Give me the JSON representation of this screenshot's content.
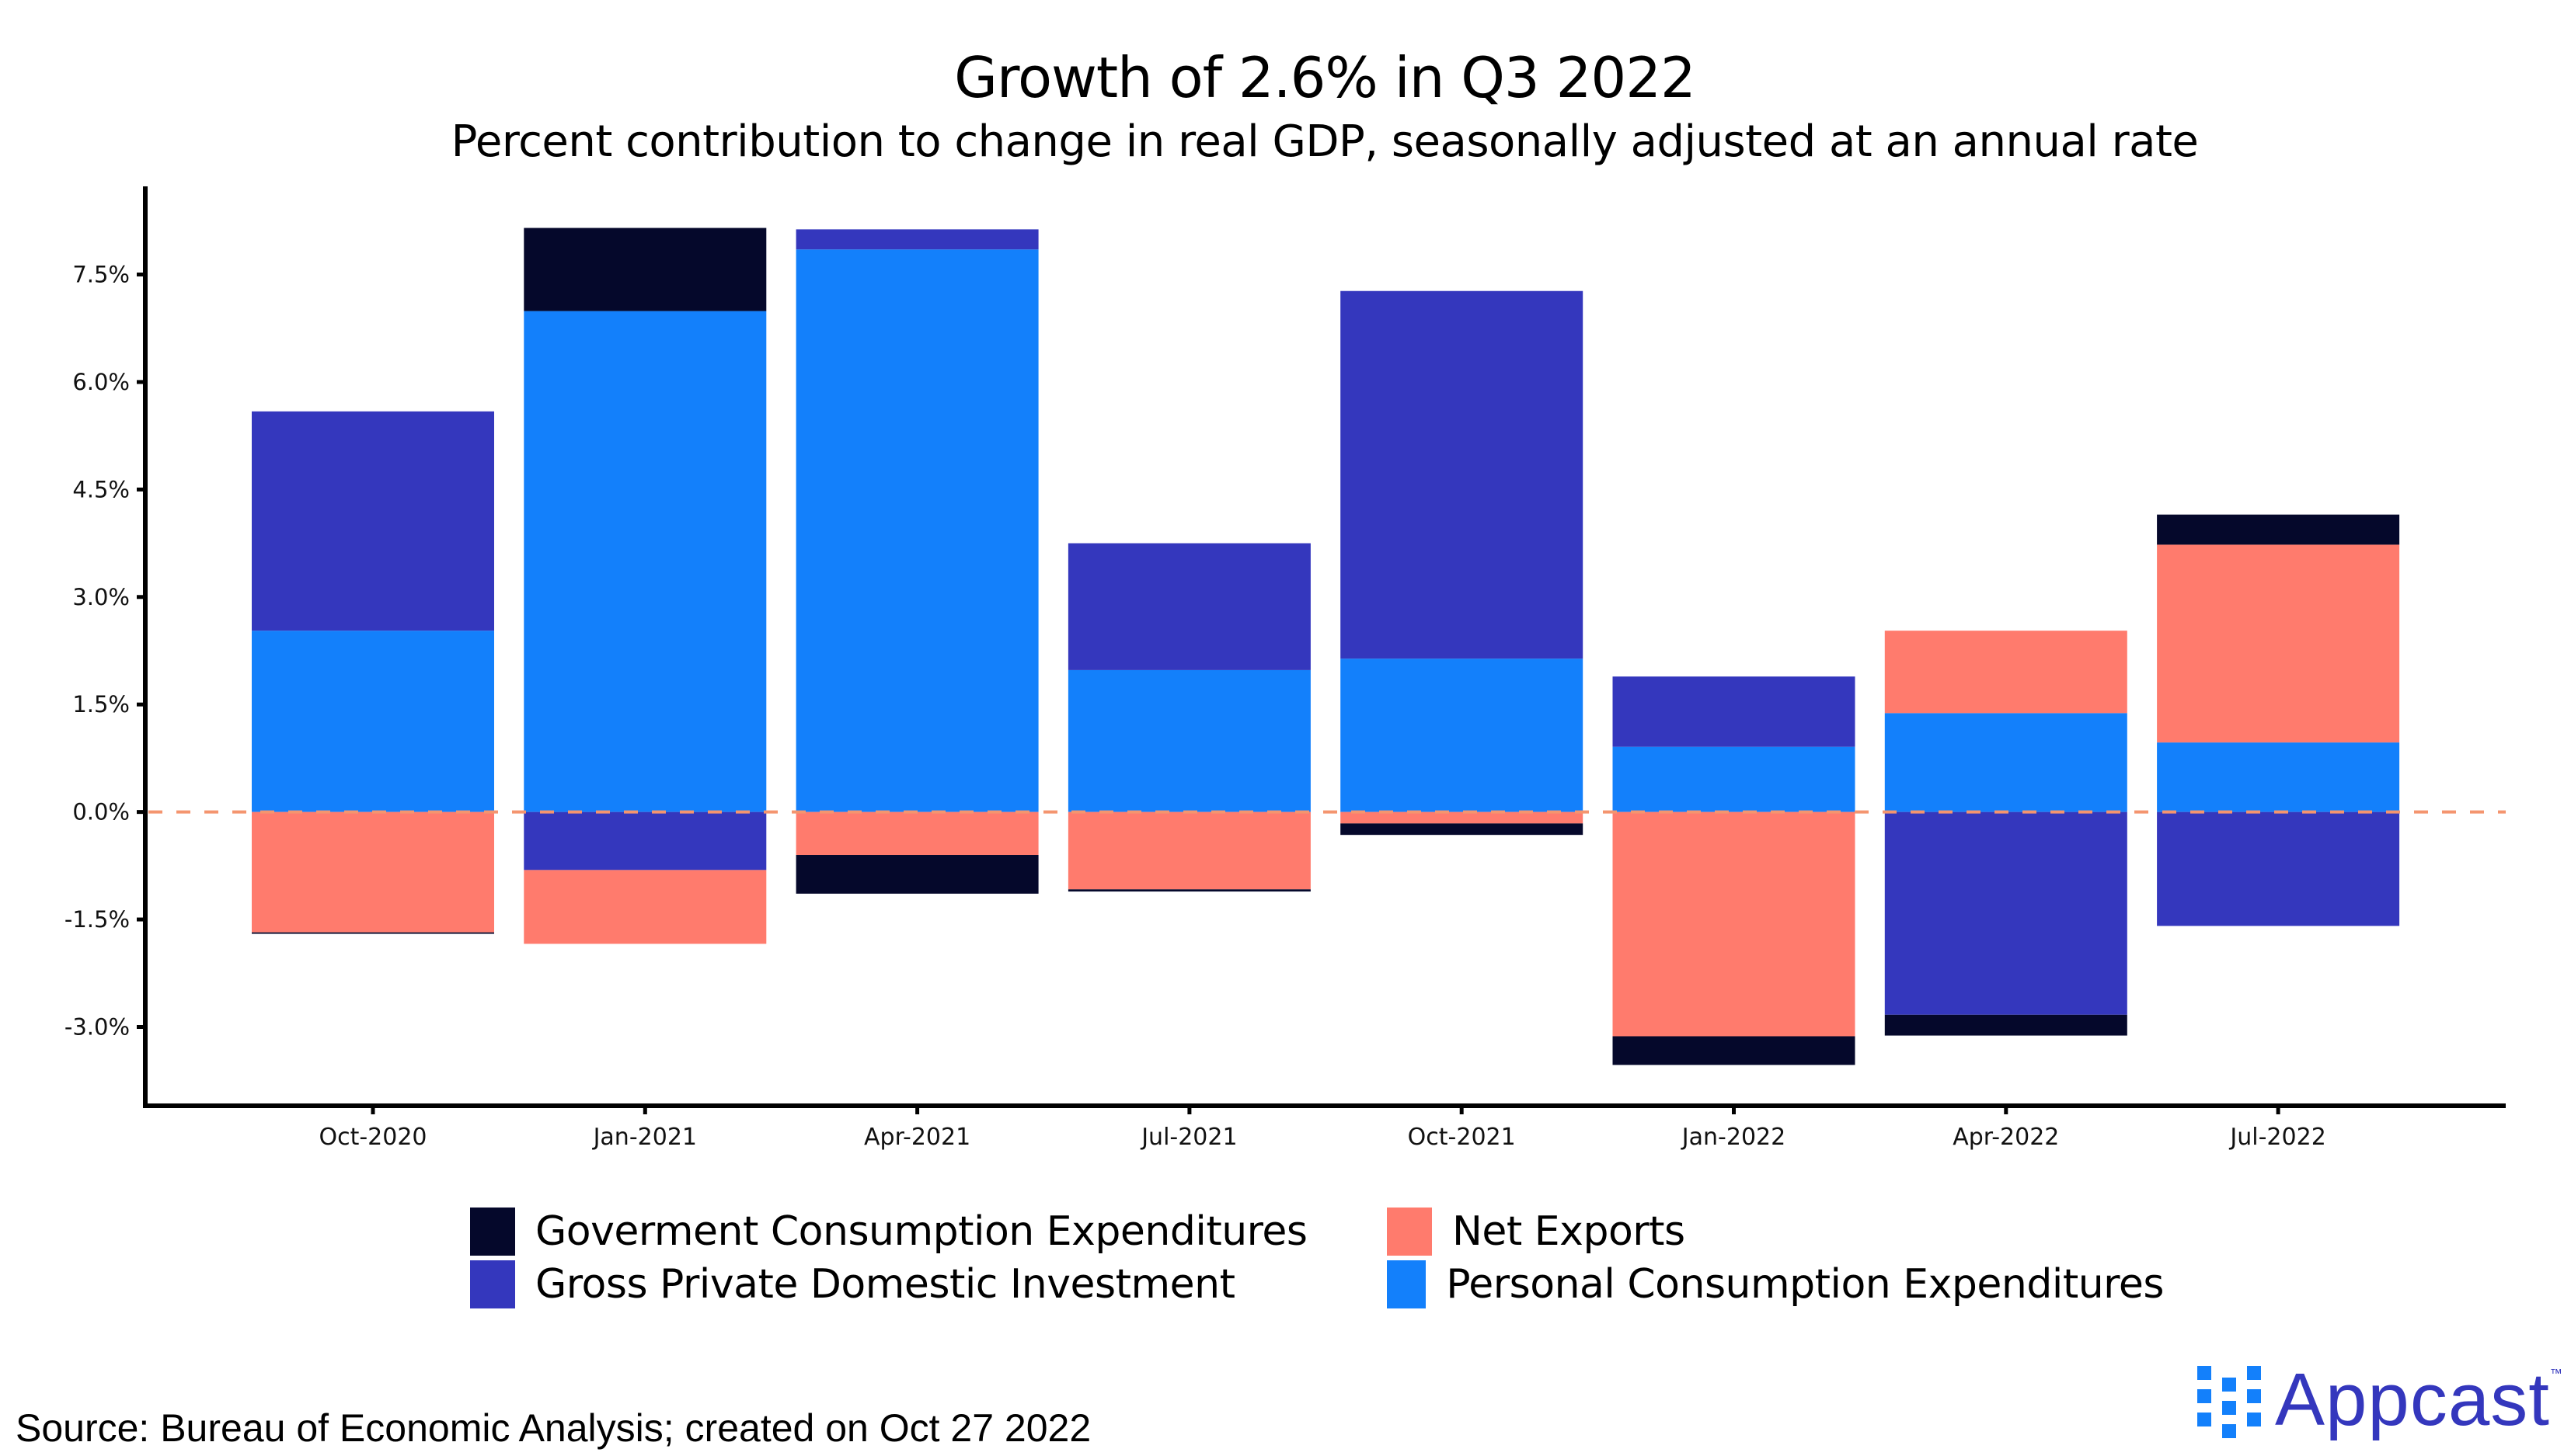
{
  "header": {
    "title": "Growth of 2.6% in Q3 2022",
    "subtitle": "Percent contribution to change in real GDP, seasonally adjusted at an annual rate"
  },
  "chart_data": {
    "type": "bar",
    "stacked": true,
    "title": "Growth of 2.6% in Q3 2022",
    "subtitle": "Percent contribution to change in real GDP, seasonally adjusted at an annual rate",
    "xlabel": "",
    "ylabel": "",
    "categories": [
      "Oct-2020",
      "Jan-2021",
      "Apr-2021",
      "Jul-2021",
      "Oct-2021",
      "Jan-2022",
      "Apr-2022",
      "Jul-2022"
    ],
    "series": [
      {
        "name": "Personal Consumption Expenditures",
        "color": "#1380fb",
        "values": [
          2.53,
          6.99,
          7.85,
          1.98,
          2.14,
          0.91,
          1.38,
          0.97
        ]
      },
      {
        "name": "Gross Private Domestic Investment",
        "color": "#3437bd",
        "values": [
          3.06,
          -0.81,
          0.28,
          1.77,
          5.13,
          0.98,
          -2.83,
          -1.59
        ]
      },
      {
        "name": "Net Exports",
        "color": "#ff7b6d",
        "values": [
          -1.68,
          -1.03,
          -0.6,
          -1.08,
          -0.16,
          -3.13,
          1.15,
          2.76
        ]
      },
      {
        "name": "Goverment Consumption Expenditures",
        "color": "#05082b",
        "values": [
          -0.02,
          1.16,
          -0.54,
          -0.03,
          -0.16,
          -0.4,
          -0.29,
          0.42
        ]
      }
    ],
    "yticks": [
      -3.0,
      -1.5,
      0.0,
      1.5,
      3.0,
      4.5,
      6.0,
      7.5
    ],
    "ytick_labels": [
      "-3.0%",
      "-1.5%",
      "0.0%",
      "1.5%",
      "3.0%",
      "4.5%",
      "6.0%",
      "7.5%"
    ],
    "ylim": [
      -4.1,
      8.73
    ],
    "reference_line": {
      "value": 0,
      "style": "dashed",
      "color": "#f4956f"
    },
    "grid": false,
    "legend_position": "bottom"
  },
  "legend": {
    "items": [
      {
        "label": "Goverment Consumption Expenditures",
        "color": "#05082b"
      },
      {
        "label": "Net Exports",
        "color": "#ff7b6d"
      },
      {
        "label": "Gross Private Domestic Investment",
        "color": "#3437bd"
      },
      {
        "label": "Personal Consumption Expenditures",
        "color": "#1380fb"
      }
    ]
  },
  "footer": {
    "source": "Source: Bureau of Economic Analysis; created on Oct 27 2022",
    "logo_text": "Appcast",
    "logo_tm": "™"
  }
}
